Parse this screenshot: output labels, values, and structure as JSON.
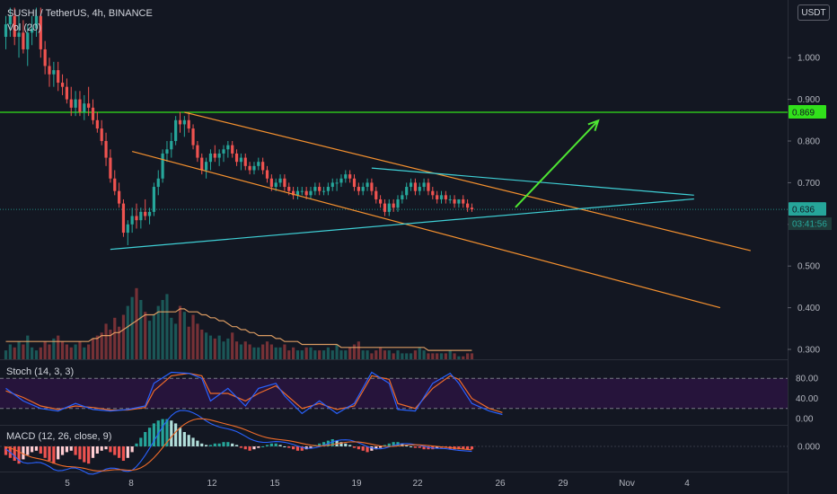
{
  "header": {
    "symbol_title": "SUSHI / TetherUS, 4h, BINANCE",
    "volume_label": "Vol (20)",
    "currency_button": "USDT"
  },
  "indicators": {
    "stoch_label": "Stoch (14, 3, 3)",
    "macd_label": "MACD (12, 26, close, 9)"
  },
  "price_axis": {
    "ticks": [
      "1.000",
      "0.900",
      "0.800",
      "0.700",
      "0.600",
      "0.500",
      "0.400",
      "0.300"
    ],
    "resistance_badge": "0.869",
    "current_badge": "0.636",
    "countdown_badge": "03:41:56"
  },
  "stoch_axis": {
    "ticks": [
      "80.00",
      "40.00",
      "0.00"
    ]
  },
  "macd_axis": {
    "ticks": [
      "0.000"
    ]
  },
  "time_axis": {
    "ticks": [
      "5",
      "8",
      "12",
      "15",
      "19",
      "22",
      "26",
      "29",
      "Nov",
      "4"
    ]
  },
  "colors": {
    "background": "#131722",
    "up": "#26a69a",
    "down": "#ef5350",
    "resistance": "#31e11b",
    "channel": "#f5912f",
    "triangle": "#3fd0d6",
    "arrow": "#4ee633",
    "stoch_k": "#2962ff",
    "stoch_d": "#ef6c2a"
  },
  "chart_data": {
    "type": "candlestick",
    "price": {
      "unit": "USDT",
      "ylim": [
        0.28,
        1.12
      ],
      "resistance_level": 0.869,
      "last_close": 0.636,
      "candles": [
        [
          1.05,
          1.1,
          1.02,
          1.08
        ],
        [
          1.08,
          1.12,
          1.05,
          1.1
        ],
        [
          1.1,
          1.12,
          1.03,
          1.05
        ],
        [
          1.05,
          1.1,
          1.0,
          1.06
        ],
        [
          1.06,
          1.09,
          1.01,
          1.02
        ],
        [
          1.02,
          1.08,
          0.98,
          1.06
        ],
        [
          1.06,
          1.1,
          1.03,
          1.07
        ],
        [
          1.07,
          1.12,
          1.05,
          1.1
        ],
        [
          1.1,
          1.12,
          1.0,
          1.02
        ],
        [
          1.02,
          1.04,
          0.96,
          0.98
        ],
        [
          0.98,
          1.0,
          0.93,
          0.96
        ],
        [
          0.96,
          0.99,
          0.93,
          0.97
        ],
        [
          0.97,
          0.99,
          0.92,
          0.94
        ],
        [
          0.94,
          0.96,
          0.91,
          0.93
        ],
        [
          0.93,
          0.95,
          0.89,
          0.9
        ],
        [
          0.9,
          0.93,
          0.86,
          0.88
        ],
        [
          0.88,
          0.92,
          0.86,
          0.9
        ],
        [
          0.9,
          0.92,
          0.86,
          0.87
        ],
        [
          0.87,
          0.91,
          0.85,
          0.89
        ],
        [
          0.89,
          0.93,
          0.86,
          0.88
        ],
        [
          0.88,
          0.9,
          0.84,
          0.85
        ],
        [
          0.85,
          0.87,
          0.82,
          0.83
        ],
        [
          0.83,
          0.85,
          0.79,
          0.8
        ],
        [
          0.8,
          0.82,
          0.74,
          0.76
        ],
        [
          0.76,
          0.78,
          0.7,
          0.71
        ],
        [
          0.71,
          0.73,
          0.67,
          0.68
        ],
        [
          0.68,
          0.7,
          0.64,
          0.65
        ],
        [
          0.65,
          0.66,
          0.57,
          0.58
        ],
        [
          0.58,
          0.61,
          0.55,
          0.6
        ],
        [
          0.6,
          0.64,
          0.58,
          0.62
        ],
        [
          0.62,
          0.65,
          0.59,
          0.61
        ],
        [
          0.61,
          0.64,
          0.59,
          0.63
        ],
        [
          0.63,
          0.66,
          0.61,
          0.62
        ],
        [
          0.62,
          0.64,
          0.6,
          0.63
        ],
        [
          0.63,
          0.7,
          0.62,
          0.69
        ],
        [
          0.69,
          0.73,
          0.67,
          0.71
        ],
        [
          0.71,
          0.78,
          0.7,
          0.77
        ],
        [
          0.77,
          0.8,
          0.75,
          0.78
        ],
        [
          0.78,
          0.82,
          0.76,
          0.8
        ],
        [
          0.8,
          0.86,
          0.79,
          0.85
        ],
        [
          0.85,
          0.87,
          0.82,
          0.84
        ],
        [
          0.84,
          0.86,
          0.81,
          0.85
        ],
        [
          0.85,
          0.87,
          0.82,
          0.83
        ],
        [
          0.83,
          0.84,
          0.78,
          0.79
        ],
        [
          0.79,
          0.8,
          0.75,
          0.76
        ],
        [
          0.76,
          0.77,
          0.72,
          0.73
        ],
        [
          0.73,
          0.76,
          0.71,
          0.75
        ],
        [
          0.75,
          0.78,
          0.73,
          0.77
        ],
        [
          0.77,
          0.79,
          0.75,
          0.76
        ],
        [
          0.76,
          0.78,
          0.74,
          0.77
        ],
        [
          0.77,
          0.79,
          0.75,
          0.78
        ],
        [
          0.78,
          0.8,
          0.76,
          0.79
        ],
        [
          0.79,
          0.8,
          0.76,
          0.77
        ],
        [
          0.77,
          0.78,
          0.74,
          0.75
        ],
        [
          0.75,
          0.77,
          0.73,
          0.76
        ],
        [
          0.76,
          0.77,
          0.73,
          0.74
        ],
        [
          0.74,
          0.75,
          0.72,
          0.73
        ],
        [
          0.73,
          0.75,
          0.72,
          0.74
        ],
        [
          0.74,
          0.76,
          0.73,
          0.75
        ],
        [
          0.75,
          0.76,
          0.72,
          0.73
        ],
        [
          0.73,
          0.74,
          0.7,
          0.71
        ],
        [
          0.71,
          0.72,
          0.68,
          0.69
        ],
        [
          0.69,
          0.71,
          0.68,
          0.7
        ],
        [
          0.7,
          0.72,
          0.69,
          0.71
        ],
        [
          0.71,
          0.72,
          0.68,
          0.69
        ],
        [
          0.69,
          0.7,
          0.67,
          0.68
        ],
        [
          0.68,
          0.69,
          0.66,
          0.67
        ],
        [
          0.67,
          0.69,
          0.66,
          0.68
        ],
        [
          0.68,
          0.69,
          0.67,
          0.68
        ],
        [
          0.68,
          0.69,
          0.66,
          0.67
        ],
        [
          0.67,
          0.69,
          0.66,
          0.68
        ],
        [
          0.68,
          0.7,
          0.67,
          0.69
        ],
        [
          0.69,
          0.7,
          0.67,
          0.68
        ],
        [
          0.68,
          0.69,
          0.67,
          0.68
        ],
        [
          0.68,
          0.7,
          0.67,
          0.69
        ],
        [
          0.69,
          0.71,
          0.68,
          0.7
        ],
        [
          0.7,
          0.71,
          0.68,
          0.7
        ],
        [
          0.7,
          0.72,
          0.69,
          0.71
        ],
        [
          0.71,
          0.73,
          0.7,
          0.72
        ],
        [
          0.72,
          0.73,
          0.7,
          0.71
        ],
        [
          0.71,
          0.72,
          0.68,
          0.69
        ],
        [
          0.69,
          0.7,
          0.67,
          0.68
        ],
        [
          0.68,
          0.7,
          0.67,
          0.69
        ],
        [
          0.69,
          0.71,
          0.68,
          0.7
        ],
        [
          0.7,
          0.71,
          0.67,
          0.68
        ],
        [
          0.68,
          0.69,
          0.65,
          0.66
        ],
        [
          0.66,
          0.67,
          0.64,
          0.65
        ],
        [
          0.65,
          0.66,
          0.62,
          0.63
        ],
        [
          0.63,
          0.66,
          0.62,
          0.65
        ],
        [
          0.65,
          0.66,
          0.63,
          0.64
        ],
        [
          0.64,
          0.67,
          0.63,
          0.66
        ],
        [
          0.66,
          0.68,
          0.65,
          0.67
        ],
        [
          0.67,
          0.7,
          0.66,
          0.69
        ],
        [
          0.69,
          0.71,
          0.68,
          0.7
        ],
        [
          0.7,
          0.71,
          0.67,
          0.68
        ],
        [
          0.68,
          0.7,
          0.67,
          0.69
        ],
        [
          0.69,
          0.71,
          0.68,
          0.7
        ],
        [
          0.7,
          0.71,
          0.67,
          0.68
        ],
        [
          0.68,
          0.69,
          0.66,
          0.67
        ],
        [
          0.67,
          0.68,
          0.65,
          0.66
        ],
        [
          0.66,
          0.68,
          0.65,
          0.67
        ],
        [
          0.67,
          0.68,
          0.65,
          0.66
        ],
        [
          0.66,
          0.67,
          0.65,
          0.66
        ],
        [
          0.66,
          0.67,
          0.64,
          0.65
        ],
        [
          0.65,
          0.66,
          0.64,
          0.66
        ],
        [
          0.66,
          0.67,
          0.64,
          0.65
        ],
        [
          0.65,
          0.66,
          0.63,
          0.64
        ],
        [
          0.64,
          0.65,
          0.63,
          0.636
        ]
      ]
    },
    "volume": [
      3,
      5,
      4,
      6,
      5,
      8,
      4,
      3,
      4,
      6,
      5,
      7,
      8,
      6,
      5,
      4,
      5,
      6,
      4,
      5,
      7,
      8,
      9,
      12,
      10,
      14,
      11,
      15,
      18,
      21,
      24,
      20,
      16,
      13,
      15,
      18,
      20,
      22,
      14,
      12,
      18,
      16,
      11,
      15,
      12,
      10,
      9,
      8,
      7,
      8,
      6,
      7,
      9,
      6,
      5,
      6,
      5,
      4,
      4,
      5,
      6,
      5,
      4,
      4,
      5,
      3,
      4,
      3,
      3,
      4,
      4,
      3,
      3,
      3,
      4,
      3,
      5,
      3,
      3,
      4,
      5,
      6,
      3,
      3,
      2,
      3,
      4,
      3,
      3,
      2,
      3,
      2,
      2,
      2,
      3,
      4,
      3,
      2,
      2,
      2,
      2,
      2,
      3,
      2,
      1,
      1,
      2,
      2
    ],
    "volume_ma": [
      6,
      6,
      6,
      6,
      6,
      6,
      6,
      6,
      6,
      6,
      6,
      6,
      6,
      6,
      6,
      6,
      6,
      6,
      6,
      6,
      7,
      7,
      8,
      8,
      8,
      9,
      9,
      10,
      11,
      12,
      13,
      14,
      15,
      15,
      15,
      16,
      16,
      16,
      16,
      16,
      17,
      17,
      16,
      16,
      16,
      15,
      15,
      14,
      14,
      13,
      13,
      12,
      11,
      11,
      10,
      10,
      9,
      9,
      8,
      8,
      8,
      8,
      7,
      7,
      6,
      6,
      6,
      6,
      5,
      5,
      5,
      5,
      5,
      5,
      5,
      5,
      5,
      4,
      4,
      4,
      4,
      4,
      4,
      4,
      4,
      4,
      4,
      4,
      4,
      4,
      4,
      4,
      4,
      4,
      4,
      4,
      4,
      3,
      3,
      3,
      3,
      3,
      3,
      3,
      3,
      3,
      3,
      3
    ],
    "stochastic": {
      "k_period": 14,
      "k_smoothing": 3,
      "d_smoothing": 3,
      "ylim": [
        0,
        100
      ],
      "bands": [
        80,
        20
      ],
      "k_points": [
        [
          0,
          60
        ],
        [
          4,
          35
        ],
        [
          8,
          20
        ],
        [
          12,
          15
        ],
        [
          16,
          30
        ],
        [
          20,
          18
        ],
        [
          24,
          15
        ],
        [
          28,
          18
        ],
        [
          32,
          25
        ],
        [
          34,
          70
        ],
        [
          38,
          92
        ],
        [
          42,
          90
        ],
        [
          45,
          80
        ],
        [
          47,
          35
        ],
        [
          51,
          60
        ],
        [
          55,
          25
        ],
        [
          58,
          60
        ],
        [
          62,
          70
        ],
        [
          64,
          45
        ],
        [
          68,
          10
        ],
        [
          72,
          35
        ],
        [
          76,
          10
        ],
        [
          80,
          30
        ],
        [
          84,
          92
        ],
        [
          88,
          70
        ],
        [
          90,
          18
        ],
        [
          94,
          15
        ],
        [
          98,
          70
        ],
        [
          102,
          90
        ],
        [
          104,
          70
        ],
        [
          107,
          30
        ],
        [
          111,
          15
        ],
        [
          114,
          8
        ]
      ],
      "d_points": [
        [
          0,
          55
        ],
        [
          4,
          42
        ],
        [
          8,
          25
        ],
        [
          12,
          18
        ],
        [
          16,
          25
        ],
        [
          20,
          22
        ],
        [
          24,
          17
        ],
        [
          28,
          17
        ],
        [
          32,
          22
        ],
        [
          34,
          55
        ],
        [
          38,
          85
        ],
        [
          42,
          90
        ],
        [
          45,
          85
        ],
        [
          47,
          50
        ],
        [
          51,
          50
        ],
        [
          55,
          35
        ],
        [
          58,
          50
        ],
        [
          62,
          65
        ],
        [
          64,
          50
        ],
        [
          68,
          20
        ],
        [
          72,
          30
        ],
        [
          76,
          18
        ],
        [
          80,
          25
        ],
        [
          84,
          85
        ],
        [
          88,
          78
        ],
        [
          90,
          30
        ],
        [
          94,
          20
        ],
        [
          98,
          60
        ],
        [
          102,
          85
        ],
        [
          104,
          78
        ],
        [
          107,
          40
        ],
        [
          111,
          20
        ],
        [
          114,
          12
        ]
      ]
    },
    "macd": {
      "fast": 12,
      "slow": 26,
      "signal": 9,
      "histogram": [
        -6,
        -8,
        -10,
        -12,
        -9,
        -6,
        -4,
        -3,
        -5,
        -8,
        -10,
        -12,
        -9,
        -6,
        -4,
        -3,
        -6,
        -9,
        -11,
        -12,
        -8,
        -5,
        -3,
        -2,
        -4,
        -6,
        -8,
        -10,
        -8,
        -4,
        2,
        6,
        10,
        13,
        16,
        18,
        19,
        19,
        18,
        16,
        13,
        10,
        8,
        6,
        4,
        2,
        1,
        1,
        2,
        2,
        3,
        3,
        2,
        1,
        -1,
        -2,
        -3,
        -2,
        -1,
        0,
        1,
        2,
        2,
        1,
        0,
        -1,
        -2,
        -3,
        -3,
        -2,
        -1,
        1,
        2,
        3,
        4,
        5,
        4,
        3,
        2,
        1,
        -1,
        -2,
        -3,
        -4,
        -3,
        -2,
        -1,
        1,
        2,
        3,
        3,
        2,
        1,
        0,
        -1,
        -1,
        -2,
        -2,
        -2,
        -1,
        -1,
        -1,
        -2,
        -2,
        -2,
        -2,
        -2,
        -2
      ]
    },
    "drawings": {
      "resistance_line": {
        "price": 0.869
      },
      "channel_upper": {
        "from": [
          41,
          0.869
        ],
        "to": [
          171,
          0.537
        ]
      },
      "channel_lower": {
        "from": [
          29,
          0.775
        ],
        "to": [
          164,
          0.4
        ]
      },
      "triangle_upper": {
        "from": [
          84,
          0.735
        ],
        "to": [
          158,
          0.67
        ]
      },
      "triangle_lower": {
        "from": [
          24,
          0.54
        ],
        "to": [
          158,
          0.661
        ]
      },
      "projection_arrow": {
        "from": [
          117,
          0.641
        ],
        "to": [
          136,
          0.849
        ]
      }
    }
  }
}
